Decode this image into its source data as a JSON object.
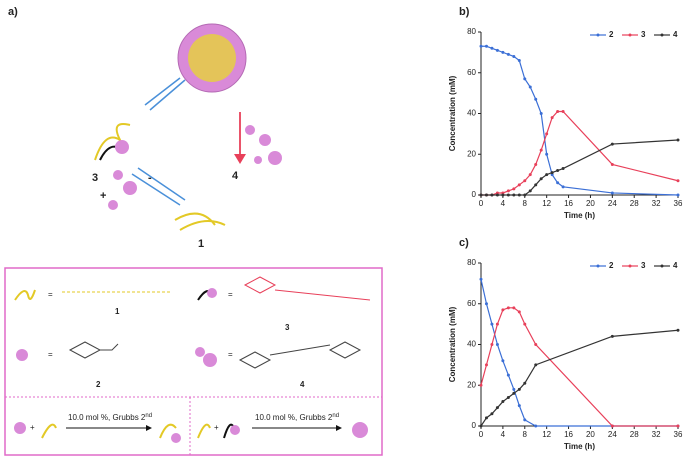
{
  "diagram": {
    "panel_label": "a)",
    "cycle_labels": [
      "3",
      "4",
      "1"
    ],
    "minus": "-",
    "plus": "+",
    "legend_labels": [
      "1",
      "3",
      "2",
      "4"
    ],
    "equals": "=",
    "reactions": [
      {
        "text": "10.0 mol %, Grubbs 2",
        "sup": "nd"
      },
      {
        "text": "10.0 mol %, Grubbs 2",
        "sup": "nd"
      }
    ]
  },
  "chart_data": [
    {
      "type": "line",
      "panel_label": "b)",
      "x_label": "Time (h)",
      "y_label": "Concentration (mM)",
      "x": [
        0,
        1,
        2,
        3,
        4,
        5,
        6,
        7,
        8,
        9,
        10,
        11,
        12,
        13,
        14,
        15,
        24,
        36
      ],
      "series": [
        {
          "name": "2",
          "color": "#3b6fd6",
          "values": [
            73,
            73,
            72,
            71,
            70,
            69,
            68,
            66,
            57,
            53,
            47,
            40,
            20,
            10,
            6,
            4,
            1,
            0
          ]
        },
        {
          "name": "3",
          "color": "#e8405a",
          "values": [
            0,
            0,
            0,
            1,
            1,
            2,
            3,
            5,
            7,
            10,
            15,
            22,
            30,
            38,
            41,
            41,
            15,
            7
          ]
        },
        {
          "name": "4",
          "color": "#333333",
          "values": [
            0,
            0,
            0,
            0,
            0,
            0,
            0,
            0,
            0,
            2,
            5,
            8,
            10,
            11,
            12,
            13,
            25,
            27
          ]
        }
      ],
      "xlim": [
        0,
        36
      ],
      "xticks": [
        0,
        4,
        8,
        12,
        16,
        20,
        24,
        28,
        32,
        36
      ],
      "ylim": [
        0,
        80
      ],
      "yticks": [
        0,
        20,
        40,
        60,
        80
      ],
      "grid": false,
      "legend": "top-right"
    },
    {
      "type": "line",
      "panel_label": "c)",
      "x_label": "Time (h)",
      "y_label": "Concentration (mM)",
      "x": [
        0,
        1,
        2,
        3,
        4,
        5,
        6,
        7,
        8,
        10,
        24,
        36
      ],
      "series": [
        {
          "name": "2",
          "color": "#3b6fd6",
          "values": [
            72,
            60,
            50,
            40,
            32,
            25,
            18,
            10,
            3,
            0,
            0,
            0
          ]
        },
        {
          "name": "3",
          "color": "#e8405a",
          "values": [
            20,
            30,
            40,
            50,
            57,
            58,
            58,
            56,
            50,
            40,
            0,
            0
          ]
        },
        {
          "name": "4",
          "color": "#333333",
          "values": [
            0,
            4,
            6,
            9,
            12,
            14,
            16,
            18,
            21,
            30,
            44,
            47
          ]
        }
      ],
      "xlim": [
        0,
        36
      ],
      "xticks": [
        0,
        4,
        8,
        12,
        16,
        20,
        24,
        28,
        32,
        36
      ],
      "ylim": [
        0,
        80
      ],
      "yticks": [
        0,
        20,
        40,
        60,
        80
      ],
      "grid": false,
      "legend": "top-right"
    }
  ]
}
